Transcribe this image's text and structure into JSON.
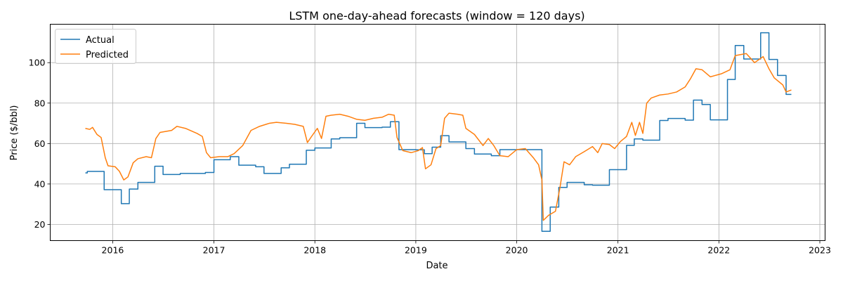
{
  "chart_data": {
    "type": "line",
    "title": "LSTM one-day-ahead forecasts (window = 120 days)",
    "xlabel": "Date",
    "ylabel": "Price ($/bbl)",
    "xlim": [
      "2015-05-20",
      "2023-01-20"
    ],
    "ylim": [
      12,
      119
    ],
    "x_ticks": [
      "2016",
      "2017",
      "2018",
      "2019",
      "2020",
      "2021",
      "2022",
      "2023"
    ],
    "y_ticks": [
      20,
      40,
      60,
      80,
      100
    ],
    "grid": true,
    "legend": "upper left",
    "colors": {
      "actual": "#1f77b4",
      "predicted": "#ff7f0e"
    },
    "series": [
      {
        "name": "Actual",
        "style": "step",
        "points": [
          [
            "2015-09-24",
            45.5
          ],
          [
            "2015-10-01",
            46.2
          ],
          [
            "2015-12-01",
            37.2
          ],
          [
            "2016-02-01",
            30.3
          ],
          [
            "2016-03-01",
            37.5
          ],
          [
            "2016-04-01",
            40.8
          ],
          [
            "2016-06-01",
            48.8
          ],
          [
            "2016-07-01",
            44.7
          ],
          [
            "2016-09-01",
            45.2
          ],
          [
            "2016-12-01",
            45.7
          ],
          [
            "2017-01-01",
            52.0
          ],
          [
            "2017-03-01",
            53.5
          ],
          [
            "2017-04-01",
            49.3
          ],
          [
            "2017-06-01",
            48.5
          ],
          [
            "2017-07-01",
            45.2
          ],
          [
            "2017-09-01",
            48.0
          ],
          [
            "2017-10-01",
            49.8
          ],
          [
            "2017-12-01",
            56.7
          ],
          [
            "2018-01-01",
            57.8
          ],
          [
            "2018-03-01",
            62.3
          ],
          [
            "2018-04-01",
            62.9
          ],
          [
            "2018-06-01",
            70.0
          ],
          [
            "2018-07-01",
            67.9
          ],
          [
            "2018-09-01",
            68.1
          ],
          [
            "2018-10-01",
            70.8
          ],
          [
            "2018-11-01",
            57.0
          ],
          [
            "2019-01-01",
            56.9
          ],
          [
            "2019-02-01",
            55.0
          ],
          [
            "2019-03-01",
            58.2
          ],
          [
            "2019-04-01",
            63.9
          ],
          [
            "2019-05-01",
            60.8
          ],
          [
            "2019-07-01",
            57.5
          ],
          [
            "2019-08-01",
            54.8
          ],
          [
            "2019-10-01",
            54.0
          ],
          [
            "2019-11-01",
            57.0
          ],
          [
            "2020-01-01",
            57.0
          ],
          [
            "2020-04-01",
            16.6
          ],
          [
            "2020-05-01",
            28.6
          ],
          [
            "2020-06-01",
            38.3
          ],
          [
            "2020-07-01",
            40.8
          ],
          [
            "2020-09-01",
            39.6
          ],
          [
            "2020-10-01",
            39.4
          ],
          [
            "2020-12-01",
            47.1
          ],
          [
            "2021-02-01",
            59.1
          ],
          [
            "2021-03-01",
            62.3
          ],
          [
            "2021-04-01",
            61.7
          ],
          [
            "2021-06-01",
            71.4
          ],
          [
            "2021-07-01",
            72.4
          ],
          [
            "2021-09-01",
            71.6
          ],
          [
            "2021-10-01",
            81.5
          ],
          [
            "2021-11-01",
            79.3
          ],
          [
            "2021-12-01",
            71.7
          ],
          [
            "2022-01-01",
            71.7
          ],
          [
            "2022-02-01",
            91.7
          ],
          [
            "2022-03-01",
            108.5
          ],
          [
            "2022-04-01",
            101.8
          ],
          [
            "2022-06-01",
            114.8
          ],
          [
            "2022-07-01",
            101.6
          ],
          [
            "2022-08-01",
            93.7
          ],
          [
            "2022-09-01",
            84.3
          ],
          [
            "2022-09-20",
            84.3
          ]
        ]
      },
      {
        "name": "Predicted",
        "style": "line",
        "points": [
          [
            "2015-09-24",
            67.5
          ],
          [
            "2015-10-10",
            67.0
          ],
          [
            "2015-10-20",
            68.0
          ],
          [
            "2015-11-05",
            64.5
          ],
          [
            "2015-11-20",
            63.0
          ],
          [
            "2015-12-05",
            53.0
          ],
          [
            "2015-12-15",
            49.0
          ],
          [
            "2016-01-10",
            48.5
          ],
          [
            "2016-01-25",
            46.3
          ],
          [
            "2016-02-10",
            42.0
          ],
          [
            "2016-02-25",
            43.5
          ],
          [
            "2016-03-15",
            50.5
          ],
          [
            "2016-04-01",
            52.5
          ],
          [
            "2016-05-01",
            53.5
          ],
          [
            "2016-05-20",
            53.0
          ],
          [
            "2016-06-05",
            62.5
          ],
          [
            "2016-06-20",
            65.5
          ],
          [
            "2016-08-01",
            66.5
          ],
          [
            "2016-08-20",
            68.5
          ],
          [
            "2016-09-20",
            67.5
          ],
          [
            "2016-11-01",
            65.0
          ],
          [
            "2016-11-20",
            63.5
          ],
          [
            "2016-12-05",
            55.5
          ],
          [
            "2016-12-20",
            53.0
          ],
          [
            "2017-01-20",
            53.5
          ],
          [
            "2017-02-20",
            53.5
          ],
          [
            "2017-03-15",
            55.0
          ],
          [
            "2017-04-15",
            59.0
          ],
          [
            "2017-05-15",
            66.5
          ],
          [
            "2017-06-15",
            68.5
          ],
          [
            "2017-07-20",
            70.0
          ],
          [
            "2017-08-15",
            70.5
          ],
          [
            "2017-09-20",
            70.0
          ],
          [
            "2017-10-20",
            69.5
          ],
          [
            "2017-11-20",
            68.5
          ],
          [
            "2017-12-05",
            60.5
          ],
          [
            "2017-12-20",
            63.5
          ],
          [
            "2018-01-10",
            67.5
          ],
          [
            "2018-01-25",
            62.5
          ],
          [
            "2018-02-10",
            73.5
          ],
          [
            "2018-03-01",
            74.0
          ],
          [
            "2018-04-01",
            74.5
          ],
          [
            "2018-05-01",
            73.5
          ],
          [
            "2018-06-01",
            72.0
          ],
          [
            "2018-07-01",
            71.5
          ],
          [
            "2018-08-01",
            72.5
          ],
          [
            "2018-09-01",
            73.0
          ],
          [
            "2018-09-25",
            74.5
          ],
          [
            "2018-10-15",
            74.0
          ],
          [
            "2018-10-25",
            63.0
          ],
          [
            "2018-11-15",
            56.5
          ],
          [
            "2018-12-15",
            55.5
          ],
          [
            "2019-01-10",
            56.5
          ],
          [
            "2019-01-25",
            58.0
          ],
          [
            "2019-02-05",
            47.5
          ],
          [
            "2019-02-25",
            49.5
          ],
          [
            "2019-03-15",
            57.5
          ],
          [
            "2019-04-01",
            59.0
          ],
          [
            "2019-04-15",
            72.5
          ],
          [
            "2019-05-01",
            75.0
          ],
          [
            "2019-06-01",
            74.5
          ],
          [
            "2019-06-20",
            74.0
          ],
          [
            "2019-07-01",
            67.5
          ],
          [
            "2019-08-01",
            64.5
          ],
          [
            "2019-09-01",
            59.0
          ],
          [
            "2019-09-20",
            62.5
          ],
          [
            "2019-10-10",
            59.0
          ],
          [
            "2019-11-01",
            54.0
          ],
          [
            "2019-12-01",
            53.5
          ],
          [
            "2020-01-01",
            57.0
          ],
          [
            "2020-02-01",
            57.5
          ],
          [
            "2020-03-01",
            53.0
          ],
          [
            "2020-03-20",
            49.5
          ],
          [
            "2020-04-01",
            42.0
          ],
          [
            "2020-04-06",
            22.0
          ],
          [
            "2020-04-25",
            24.5
          ],
          [
            "2020-05-20",
            26.5
          ],
          [
            "2020-06-05",
            38.0
          ],
          [
            "2020-06-20",
            51.0
          ],
          [
            "2020-07-10",
            49.5
          ],
          [
            "2020-08-01",
            53.5
          ],
          [
            "2020-09-01",
            56.0
          ],
          [
            "2020-10-01",
            58.5
          ],
          [
            "2020-10-20",
            55.5
          ],
          [
            "2020-11-05",
            60.0
          ],
          [
            "2020-12-01",
            59.5
          ],
          [
            "2020-12-20",
            57.5
          ],
          [
            "2021-01-10",
            61.0
          ],
          [
            "2021-02-01",
            63.5
          ],
          [
            "2021-02-20",
            70.5
          ],
          [
            "2021-03-05",
            64.0
          ],
          [
            "2021-03-20",
            70.5
          ],
          [
            "2021-04-01",
            65.0
          ],
          [
            "2021-04-15",
            80.0
          ],
          [
            "2021-05-01",
            82.5
          ],
          [
            "2021-06-01",
            84.0
          ],
          [
            "2021-07-01",
            84.5
          ],
          [
            "2021-08-01",
            85.5
          ],
          [
            "2021-09-01",
            88.0
          ],
          [
            "2021-09-20",
            92.0
          ],
          [
            "2021-10-10",
            97.0
          ],
          [
            "2021-11-01",
            96.5
          ],
          [
            "2021-12-01",
            93.0
          ],
          [
            "2022-01-10",
            94.5
          ],
          [
            "2022-02-10",
            96.5
          ],
          [
            "2022-03-01",
            103.5
          ],
          [
            "2022-04-10",
            104.5
          ],
          [
            "2022-05-10",
            100.0
          ],
          [
            "2022-06-10",
            103.0
          ],
          [
            "2022-07-01",
            97.0
          ],
          [
            "2022-07-20",
            92.5
          ],
          [
            "2022-08-20",
            89.0
          ],
          [
            "2022-09-01",
            85.5
          ],
          [
            "2022-09-20",
            86.5
          ]
        ]
      }
    ]
  }
}
